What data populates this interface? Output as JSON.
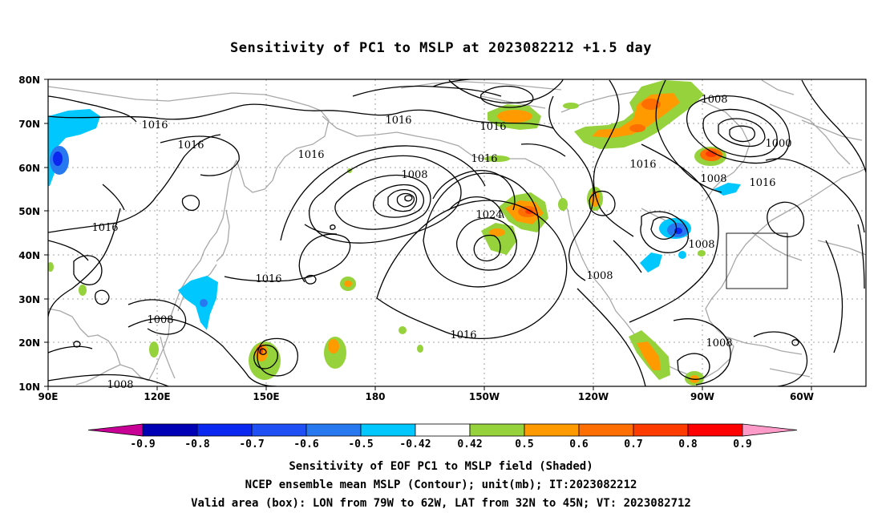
{
  "title": "Sensitivity of PC1 to MSLP at 2023082212 +1.5 day",
  "lat_labels": [
    "80N",
    "70N",
    "60N",
    "50N",
    "40N",
    "30N",
    "20N",
    "10N"
  ],
  "lon_labels": [
    "90E",
    "120E",
    "150E",
    "180",
    "150W",
    "120W",
    "90W",
    "60W"
  ],
  "contour_labels": [
    "1016",
    "1016",
    "1016",
    "1016",
    "1016",
    "1008",
    "1016",
    "1024",
    "1016",
    "1008",
    "1016",
    "1000",
    "1016",
    "1008",
    "1016",
    "1008",
    "1008",
    "1008",
    "1016",
    "1008"
  ],
  "colorbar": {
    "ticks": [
      "-0.9",
      "-0.8",
      "-0.7",
      "-0.6",
      "-0.5",
      "-0.42",
      "0.42",
      "0.5",
      "0.6",
      "0.7",
      "0.8",
      "0.9"
    ],
    "colors": [
      "#0000b4",
      "#0a28f0",
      "#1e50f5",
      "#2878f0",
      "#00c8ff",
      "#ffffff",
      "#96d23c",
      "#ff9b00",
      "#ff6e00",
      "#ff3c00",
      "#ff0000"
    ],
    "low_extend_color": "#c80096",
    "high_extend_color": "#ff9bc8"
  },
  "shading_colors": {
    "green": "#96d23c",
    "light_orange": "#ff9b00",
    "orange": "#ff6e00",
    "red": "#ff3c00",
    "cyan": "#00c8ff",
    "blue": "#2878f0",
    "dark_blue": "#0a28f0"
  },
  "valid_box": {
    "lon_range": "79W to 62W",
    "lat_range": "32N to 45N"
  },
  "captions": {
    "line1": "Sensitivity of EOF PC1 to MSLP field (Shaded)",
    "line2": "NCEP ensemble mean MSLP (Contour); unit(mb); IT:2023082212",
    "line3": "Valid area (box): LON from 79W to 62W, LAT from 32N to 45N; VT: 2023082712"
  }
}
